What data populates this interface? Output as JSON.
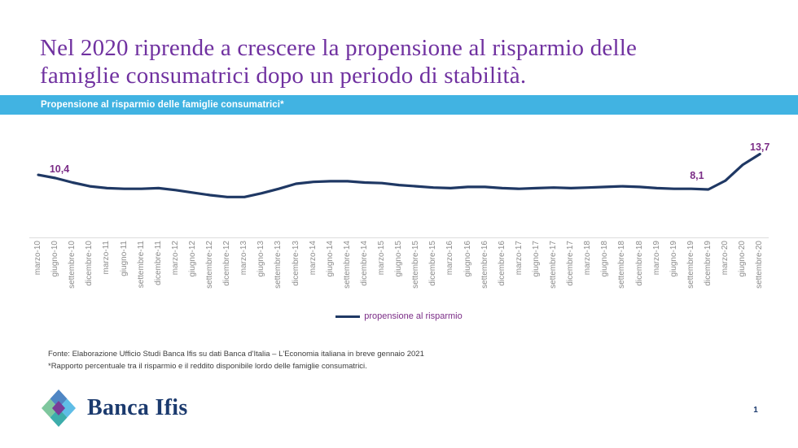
{
  "header": {
    "title_line1": "Nel 2020 riprende a crescere la propensione al risparmio delle",
    "title_line2": "famiglie consumatrici dopo un periodo di stabilità.",
    "banner_label": "Propensione al risparmio delle famiglie consumatrici*"
  },
  "chart_data": {
    "type": "line",
    "title": "Propensione al risparmio delle famiglie consumatrici*",
    "x_tick_labels": [
      "marzo-10",
      "giugno-10",
      "settembre-10",
      "dicembre-10",
      "marzo-11",
      "giugno-11",
      "settembre-11",
      "dicembre-11",
      "marzo-12",
      "giugno-12",
      "settembre-12",
      "dicembre-12",
      "marzo-13",
      "giugno-13",
      "settembre-13",
      "dicembre-13",
      "marzo-14",
      "giugno-14",
      "settembre-14",
      "dicembre-14",
      "marzo-15",
      "giugno-15",
      "settembre-15",
      "dicembre-15",
      "marzo-16",
      "giugno-16",
      "settembre-16",
      "dicembre-16",
      "marzo-17",
      "giugno-17",
      "settembre-17",
      "dicembre-17",
      "marzo-18",
      "giugno-18",
      "settembre-18",
      "dicembre-18",
      "marzo-19",
      "giugno-19",
      "settembre-19",
      "dicembre-19",
      "marzo-20",
      "giugno-20",
      "settembre-20"
    ],
    "series": [
      {
        "name": "propensione al risparmio",
        "values": [
          10.4,
          9.9,
          9.2,
          8.6,
          8.3,
          8.2,
          8.2,
          8.3,
          8.0,
          7.6,
          7.2,
          6.9,
          6.9,
          7.5,
          8.2,
          9.0,
          9.3,
          9.4,
          9.4,
          9.2,
          9.1,
          8.8,
          8.6,
          8.4,
          8.3,
          8.5,
          8.5,
          8.3,
          8.2,
          8.3,
          8.4,
          8.3,
          8.4,
          8.5,
          8.6,
          8.5,
          8.3,
          8.2,
          8.2,
          8.1,
          9.5,
          12.0,
          13.7
        ]
      }
    ],
    "point_labels": [
      {
        "index": 0,
        "text": "10,4"
      },
      {
        "index": 39,
        "text": "8,1"
      },
      {
        "index": 42,
        "text": "13,7"
      }
    ],
    "legend": "propensione al risparmio",
    "legend_position": "bottom-center",
    "grid": false,
    "y_axis_visible": false,
    "ylim": [
      6.5,
      14.5
    ],
    "unit": "percent"
  },
  "footer": {
    "source_line": "Fonte: Elaborazione Ufficio Studi Banca Ifis su dati Banca d'Italia – L'Economia italiana in breve gennaio 2021",
    "note_line": "*Rapporto percentuale tra il risparmio e il reddito disponibile lordo delle famiglie consumatrici.",
    "logo_text": "Banca Ifis",
    "page_number": "1"
  },
  "colors": {
    "banner_bg": "#41b3e2",
    "title": "#7031a0",
    "chart_line": "#1f3864",
    "data_label": "#7b2d87",
    "axis_label": "#8c8c8c",
    "brand_navy": "#1b3a6e",
    "logo_blue": "#4f86c4",
    "logo_light_blue": "#5fbde6",
    "logo_teal": "#3dadab",
    "logo_green": "#7fc79e",
    "logo_purple": "#7a3b97"
  }
}
